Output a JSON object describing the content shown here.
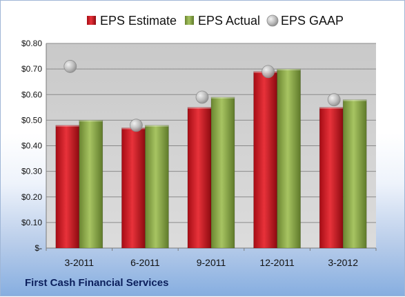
{
  "company": "First Cash Financial Services",
  "chart_data": {
    "type": "bar",
    "categories": [
      "3-2011",
      "6-2011",
      "9-2011",
      "12-2011",
      "3-2012"
    ],
    "series": [
      {
        "name": "EPS Estimate",
        "kind": "bar",
        "color": "#c8141e",
        "values": [
          0.48,
          0.47,
          0.55,
          0.69,
          0.55
        ]
      },
      {
        "name": "EPS Actual",
        "kind": "bar",
        "color": "#7f9c3c",
        "values": [
          0.5,
          0.48,
          0.59,
          0.7,
          0.58
        ]
      },
      {
        "name": "EPS GAAP",
        "kind": "marker",
        "color": "#b9b9b9",
        "values": [
          0.71,
          0.48,
          0.59,
          0.69,
          0.58
        ]
      }
    ],
    "ylim": [
      0,
      0.8
    ],
    "yticks": [
      0,
      0.1,
      0.2,
      0.3,
      0.4,
      0.5,
      0.6,
      0.7,
      0.8
    ],
    "ytick_labels": [
      "$-",
      "$0.10",
      "$0.20",
      "$0.30",
      "$0.40",
      "$0.50",
      "$0.60",
      "$0.70",
      "$0.80"
    ],
    "grid": true,
    "legend_position": "top"
  }
}
